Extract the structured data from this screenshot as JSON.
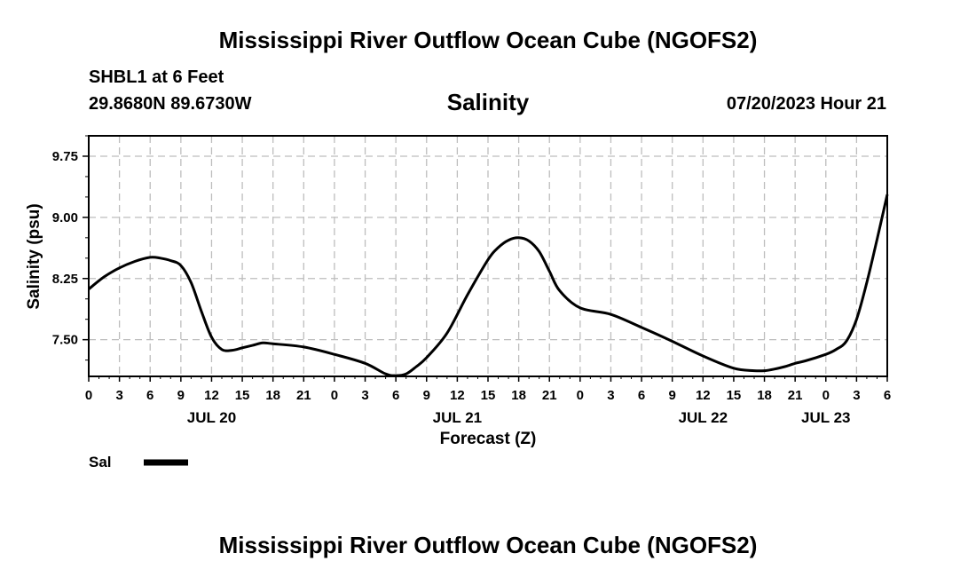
{
  "header": {
    "title": "Mississippi River Outflow Ocean Cube (NGOFS2)",
    "station": "SHBL1 at 6 Feet",
    "coordinates": "29.8680N  89.6730W",
    "plot_title": "Salinity",
    "datetime": "07/20/2023 Hour 21"
  },
  "footer": {
    "title": "Mississippi River Outflow Ocean Cube (NGOFS2)"
  },
  "chart_data": {
    "type": "line",
    "title": "Salinity",
    "xlabel": "Forecast (Z)",
    "ylabel": "Salinity (psu)",
    "x_unit": "hours since JUL 20 00Z",
    "xlim": [
      0,
      78
    ],
    "ylim": [
      7.05,
      10.0
    ],
    "yticks": [
      7.5,
      8.25,
      9.0,
      9.75
    ],
    "ytick_labels": [
      "7.50",
      "8.25",
      "9.00",
      "9.75"
    ],
    "xtick_step": 3,
    "xtick_labels": [
      "0",
      "3",
      "6",
      "9",
      "12",
      "15",
      "18",
      "21",
      "0",
      "3",
      "6",
      "9",
      "12",
      "15",
      "18",
      "21",
      "0",
      "3",
      "6",
      "9",
      "12",
      "15",
      "18",
      "21",
      "0",
      "3",
      "6"
    ],
    "date_labels": [
      {
        "x": 12,
        "label": "JUL 20"
      },
      {
        "x": 36,
        "label": "JUL 21"
      },
      {
        "x": 60,
        "label": "JUL 22"
      },
      {
        "x": 72,
        "label": "JUL 23"
      }
    ],
    "grid": true,
    "series": [
      {
        "name": "Sal",
        "x": [
          0,
          1.5,
          3,
          4.5,
          6,
          7,
          8,
          9,
          10,
          11,
          12,
          13,
          14,
          15,
          16,
          17,
          18,
          21,
          24,
          27,
          29,
          30,
          31,
          32,
          33,
          35,
          37,
          39,
          40,
          41,
          42,
          43,
          44,
          45,
          46,
          48,
          51,
          54,
          57,
          60,
          63,
          65,
          66,
          67,
          68,
          69,
          70,
          72,
          73,
          74,
          75,
          76,
          77,
          78
        ],
        "values": [
          8.12,
          8.27,
          8.38,
          8.46,
          8.51,
          8.5,
          8.47,
          8.41,
          8.2,
          7.85,
          7.53,
          7.38,
          7.37,
          7.4,
          7.43,
          7.46,
          7.45,
          7.41,
          7.32,
          7.21,
          7.08,
          7.06,
          7.08,
          7.17,
          7.28,
          7.58,
          8.05,
          8.48,
          8.63,
          8.72,
          8.75,
          8.71,
          8.58,
          8.34,
          8.1,
          7.89,
          7.81,
          7.65,
          7.48,
          7.3,
          7.15,
          7.12,
          7.12,
          7.14,
          7.17,
          7.21,
          7.24,
          7.32,
          7.38,
          7.48,
          7.75,
          8.2,
          8.73,
          9.28
        ]
      }
    ],
    "legend": {
      "label": "Sal",
      "placement": "bottom-left"
    }
  }
}
